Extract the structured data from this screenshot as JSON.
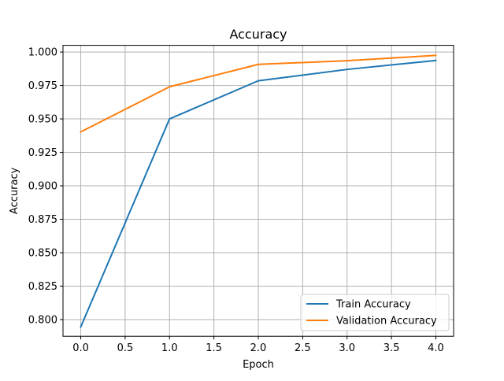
{
  "chart_data": {
    "type": "line",
    "title": "Accuracy",
    "xlabel": "Epoch",
    "ylabel": "Accuracy",
    "x": [
      0,
      1,
      2,
      3,
      4
    ],
    "xlim": [
      -0.2,
      4.2
    ],
    "ylim": [
      0.7875,
      1.005
    ],
    "xticks": [
      0.0,
      0.5,
      1.0,
      1.5,
      2.0,
      2.5,
      3.0,
      3.5,
      4.0
    ],
    "xtick_labels": [
      "0.0",
      "0.5",
      "1.0",
      "1.5",
      "2.0",
      "2.5",
      "3.0",
      "3.5",
      "4.0"
    ],
    "yticks": [
      0.8,
      0.825,
      0.85,
      0.875,
      0.9,
      0.925,
      0.95,
      0.975,
      1.0
    ],
    "ytick_labels": [
      "0.800",
      "0.825",
      "0.850",
      "0.875",
      "0.900",
      "0.925",
      "0.950",
      "0.975",
      "1.000"
    ],
    "grid": true,
    "legend_position": "lower-right",
    "series": [
      {
        "name": "Train Accuracy",
        "color": "#1f77b4",
        "values": [
          0.7945,
          0.95,
          0.9785,
          0.987,
          0.9937
        ]
      },
      {
        "name": "Validation Accuracy",
        "color": "#ff7f0e",
        "values": [
          0.9403,
          0.974,
          0.9908,
          0.9935,
          0.9975
        ]
      }
    ]
  }
}
